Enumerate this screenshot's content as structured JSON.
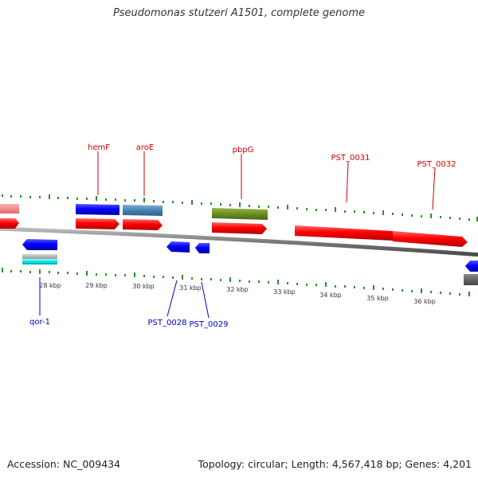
{
  "title": "Pseudomonas stutzeri A1501, complete genome",
  "footer": {
    "accession": "Accession: NC_009434",
    "summary": "Topology: circular; Length: 4,567,418 bp; Genes: 4,201"
  },
  "colors": {
    "forward_cds": "#ff0000",
    "reverse_cds": "#0000ff",
    "forward_label": "#cc0000",
    "reverse_label": "#0000cc",
    "backbone": "#8a8a8a",
    "ticks": "#228822"
  },
  "scale_labels": [
    "28 kbp",
    "29 kbp",
    "30 kbp",
    "31 kbp",
    "32 kbp",
    "33 kbp",
    "34 kbp",
    "35 kbp",
    "36 kbp"
  ],
  "forward_gene_labels": [
    "hemF",
    "aroE",
    "pbpG",
    "PST_0031",
    "PST_0032"
  ],
  "reverse_gene_labels": [
    "qor-1",
    "PST_0028",
    "PST_0029"
  ]
}
